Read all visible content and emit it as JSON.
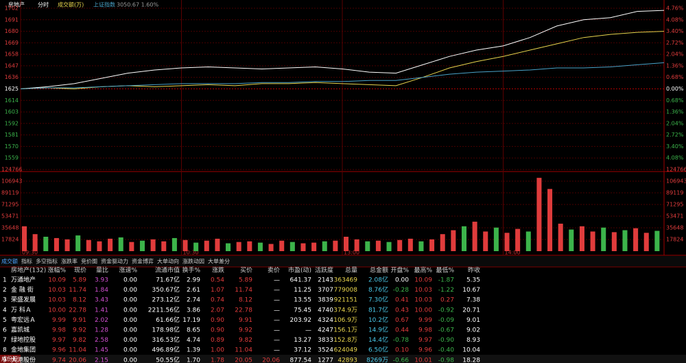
{
  "header": {
    "title": "房地产",
    "mode": "分时",
    "indicator": "成交额(万)",
    "index_name": "上证指数",
    "index_value": "3050.67 1.60%"
  },
  "chart_data": [
    {
      "type": "line",
      "x": [
        0,
        10,
        20,
        30,
        40,
        50,
        60,
        70,
        80,
        90,
        100,
        110,
        120,
        130,
        140,
        150,
        160,
        170,
        180,
        190,
        200,
        210,
        220,
        230,
        240
      ],
      "xlim": [
        0,
        240
      ],
      "xticks": [
        {
          "value": 0,
          "label": "09:30"
        },
        {
          "value": 60,
          "label": "10:30"
        },
        {
          "value": 120,
          "label": "13:00"
        },
        {
          "value": 180,
          "label": "14:00"
        }
      ],
      "ylim": [
        1548,
        1702
      ],
      "yticks": [
        1702,
        1691,
        1680,
        1669,
        1658,
        1647,
        1636,
        1625,
        1614,
        1603,
        1592,
        1581,
        1570,
        1559
      ],
      "y2lim": [
        -4.76,
        4.76
      ],
      "y2ticks": [
        {
          "value": 4.76,
          "label": "4.76%"
        },
        {
          "value": 4.08,
          "label": "4.08%"
        },
        {
          "value": 3.4,
          "label": "3.40%"
        },
        {
          "value": 2.72,
          "label": "2.72%"
        },
        {
          "value": 2.04,
          "label": "2.04%"
        },
        {
          "value": 1.36,
          "label": "1.36%"
        },
        {
          "value": 0.68,
          "label": "0.68%"
        },
        {
          "value": 0,
          "label": "0.00%"
        },
        {
          "value": -0.68,
          "label": "0.68%"
        },
        {
          "value": -1.36,
          "label": "1.36%"
        },
        {
          "value": -2.04,
          "label": "2.04%"
        },
        {
          "value": -2.72,
          "label": "2.72%"
        },
        {
          "value": -3.4,
          "label": "3.40%"
        },
        {
          "value": -4.08,
          "label": "4.08%"
        }
      ],
      "grid": true,
      "series": [
        {
          "color": "#ffffff",
          "values": [
            1625,
            1627,
            1630,
            1635,
            1640,
            1643,
            1645,
            1646,
            1645,
            1644,
            1645,
            1646,
            1644,
            1641,
            1640,
            1648,
            1656,
            1662,
            1666,
            1674,
            1685,
            1691,
            1693,
            1699,
            1700
          ]
        },
        {
          "color": "#e8d44d",
          "values": [
            1625,
            1626,
            1625,
            1627,
            1628,
            1627,
            1628,
            1629,
            1628,
            1630,
            1630,
            1631,
            1630,
            1629,
            1628,
            1636,
            1645,
            1651,
            1656,
            1662,
            1668,
            1674,
            1677,
            1679,
            1680
          ]
        },
        {
          "color": "#4aa3c9",
          "values": [
            1625,
            1626,
            1626,
            1627,
            1628,
            1629,
            1630,
            1630,
            1630,
            1631,
            1631,
            1632,
            1632,
            1633,
            1633,
            1636,
            1639,
            1641,
            1642,
            1643,
            1645,
            1645,
            1646,
            1648,
            1650
          ]
        }
      ]
    },
    {
      "type": "bar",
      "x": [
        0,
        4,
        8,
        12,
        16,
        20,
        24,
        28,
        32,
        36,
        40,
        44,
        48,
        52,
        56,
        60,
        64,
        68,
        72,
        76,
        80,
        84,
        88,
        92,
        96,
        100,
        104,
        108,
        112,
        116,
        120,
        124,
        128,
        132,
        136,
        140,
        144,
        148,
        152,
        156,
        160,
        164,
        168,
        172,
        176,
        180,
        184,
        188,
        192,
        196,
        200,
        204,
        208,
        212,
        216,
        220,
        224,
        228,
        232,
        236
      ],
      "xlim": [
        0,
        240
      ],
      "values": [
        38000,
        26000,
        22000,
        20000,
        18000,
        24000,
        17000,
        15000,
        19000,
        21000,
        14000,
        16000,
        18000,
        15000,
        20000,
        17000,
        13000,
        16000,
        19000,
        12000,
        14000,
        15000,
        13000,
        11000,
        16000,
        14000,
        12000,
        13000,
        15000,
        16000,
        22000,
        18000,
        15000,
        16000,
        14000,
        17000,
        19000,
        15000,
        18000,
        26000,
        32000,
        38000,
        45000,
        30000,
        36000,
        28000,
        34000,
        30000,
        112000,
        95000,
        42000,
        33000,
        38000,
        30000,
        36000,
        29000,
        32000,
        35000,
        28000,
        31000
      ],
      "colors": [
        "#e03c3c",
        "#e03c3c",
        "#3cb44b",
        "#e03c3c",
        "#e03c3c",
        "#3cb44b",
        "#e03c3c",
        "#e03c3c",
        "#e03c3c",
        "#3cb44b",
        "#e03c3c",
        "#3cb44b",
        "#e03c3c",
        "#e03c3c",
        "#3cb44b",
        "#e03c3c",
        "#3cb44b",
        "#e03c3c",
        "#e03c3c",
        "#3cb44b",
        "#e03c3c",
        "#e03c3c",
        "#3cb44b",
        "#e03c3c",
        "#e03c3c",
        "#3cb44b",
        "#e03c3c",
        "#e03c3c",
        "#3cb44b",
        "#e03c3c",
        "#e03c3c",
        "#e03c3c",
        "#3cb44b",
        "#e03c3c",
        "#3cb44b",
        "#e03c3c",
        "#e03c3c",
        "#3cb44b",
        "#e03c3c",
        "#e03c3c",
        "#e03c3c",
        "#3cb44b",
        "#e03c3c",
        "#e03c3c",
        "#3cb44b",
        "#e03c3c",
        "#e03c3c",
        "#3cb44b",
        "#e03c3c",
        "#e03c3c",
        "#e03c3c",
        "#3cb44b",
        "#e03c3c",
        "#e03c3c",
        "#3cb44b",
        "#e03c3c",
        "#3cb44b",
        "#e03c3c",
        "#e03c3c",
        "#3cb44b"
      ],
      "ylim": [
        0,
        124766
      ],
      "yticks": [
        17824,
        35648,
        53471,
        71295,
        89119,
        106943,
        124766
      ],
      "grid": true
    }
  ],
  "tabs": [
    "成交额",
    "指标",
    "多空指标",
    "涨跌率",
    "竞价图",
    "资金驱动力",
    "资金博弈",
    "大单动向",
    "涨跌动因",
    "大单差分"
  ],
  "table": {
    "columns": [
      "房地产(132)",
      "涨幅%",
      "现价",
      "量比",
      "涨速%",
      "流通市值",
      "换手%",
      "涨跌",
      "买价",
      "卖价",
      "市盈(动)",
      "活跃度",
      "总量",
      "总金额",
      "开盘%",
      "最高%",
      "最低%",
      "昨收"
    ],
    "rows": [
      [
        "1",
        "万通地产",
        "10.09",
        "5.89",
        "3.93",
        "0.00",
        "71.67亿",
        "2.99",
        "0.54",
        "5.89",
        "—",
        "641.37",
        "2143",
        "363469",
        "2.08亿",
        "0.00",
        "10.09",
        "-1.87",
        "5.35"
      ],
      [
        "2",
        "金 融 街",
        "10.03",
        "11.74",
        "1.84",
        "0.00",
        "350.67亿",
        "2.61",
        "1.07",
        "11.74",
        "—",
        "11.25",
        "3707",
        "779008",
        "8.76亿",
        "-0.28",
        "10.03",
        "-1.22",
        "10.67"
      ],
      [
        "3",
        "荣盛发展",
        "10.03",
        "8.12",
        "3.43",
        "0.00",
        "273.12亿",
        "2.74",
        "0.74",
        "8.12",
        "—",
        "13.55",
        "3839",
        "921151",
        "7.30亿",
        "0.41",
        "10.03",
        "0.27",
        "7.38"
      ],
      [
        "4",
        "万 科Ａ",
        "10.00",
        "22.78",
        "1.41",
        "0.00",
        "2211.56亿",
        "3.86",
        "2.07",
        "22.78",
        "—",
        "75.45",
        "4740",
        "374.9万",
        "81.7亿",
        "0.43",
        "10.00",
        "-0.92",
        "20.71"
      ],
      [
        "5",
        "粤宏远Ａ",
        "9.99",
        "9.91",
        "2.02",
        "0.00",
        "61.66亿",
        "17.19",
        "0.90",
        "9.91",
        "—",
        "203.92",
        "4324",
        "106.9万",
        "10.2亿",
        "0.67",
        "9.99",
        "-0.09",
        "9.01"
      ],
      [
        "6",
        "嘉凯城",
        "9.98",
        "9.92",
        "1.28",
        "0.00",
        "178.98亿",
        "8.65",
        "0.90",
        "9.92",
        "—",
        "—",
        "4247",
        "156.1万",
        "14.9亿",
        "0.44",
        "9.98",
        "-0.67",
        "9.02"
      ],
      [
        "7",
        "绿地控股",
        "9.97",
        "9.82",
        "2.58",
        "0.00",
        "316.53亿",
        "4.74",
        "0.89",
        "9.82",
        "—",
        "13.27",
        "3833",
        "152.8万",
        "14.4亿",
        "-0.78",
        "9.97",
        "-0.90",
        "8.93"
      ],
      [
        "8",
        "金地集团",
        "9.96",
        "11.04",
        "1.45",
        "0.00",
        "496.89亿",
        "1.39",
        "1.00",
        "11.04",
        "—",
        "37.12",
        "3524",
        "624049",
        "6.50亿",
        "0.10",
        "9.96",
        "-0.40",
        "10.04"
      ],
      [
        "9",
        "大港股份",
        "9.74",
        "20.06",
        "2.15",
        "0.00",
        "50.55亿",
        "1.70",
        "1.78",
        "20.05",
        "20.06",
        "877.54",
        "1277",
        "42893",
        "8269万",
        "-0.66",
        "10.01",
        "-0.98",
        "18.28"
      ]
    ]
  },
  "footer": "成份股"
}
